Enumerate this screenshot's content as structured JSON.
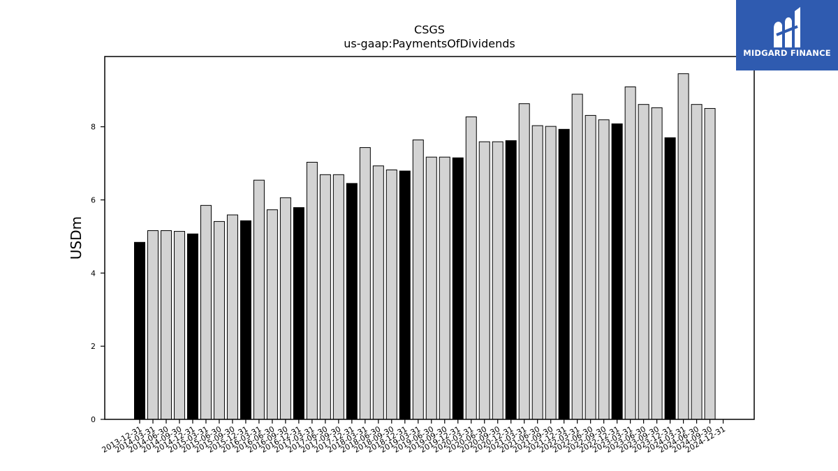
{
  "logo": {
    "text": "MIDGARD FINANCE",
    "icon": "midgard-finance-logo-icon",
    "background_color": "#2f5bb0"
  },
  "colors": {
    "year_end_bar": "#000000",
    "interim_bar": "#d3d3d3",
    "bar_edge": "#000000"
  },
  "chart_data": {
    "type": "bar",
    "title": "CSGS",
    "subtitle": "us-gaap:PaymentsOfDividends",
    "xlabel": "",
    "ylabel": "USDm",
    "ylim": [
      0,
      9.92
    ],
    "yticks": [
      0,
      2,
      4,
      6,
      8
    ],
    "grid": false,
    "legend": "none",
    "categories": [
      "2013-12-31",
      "2014-03-31",
      "2014-06-30",
      "2014-09-30",
      "2014-12-31",
      "2015-03-31",
      "2015-06-30",
      "2015-09-30",
      "2015-12-31",
      "2016-03-31",
      "2016-06-30",
      "2016-09-30",
      "2016-12-31",
      "2017-03-31",
      "2017-06-30",
      "2017-09-30",
      "2017-12-31",
      "2018-03-31",
      "2018-06-30",
      "2018-09-30",
      "2018-12-31",
      "2019-03-31",
      "2019-06-30",
      "2019-09-30",
      "2019-12-31",
      "2020-03-31",
      "2020-06-30",
      "2020-09-30",
      "2020-12-31",
      "2021-03-31",
      "2021-06-30",
      "2021-09-30",
      "2021-12-31",
      "2022-03-31",
      "2022-06-30",
      "2022-09-30",
      "2022-12-31",
      "2023-03-31",
      "2023-06-30",
      "2023-09-30",
      "2023-12-31",
      "2024-03-31",
      "2024-06-30",
      "2024-09-30",
      "2024-12-31"
    ],
    "values": [
      4.84,
      5.16,
      5.16,
      5.14,
      5.07,
      5.85,
      5.41,
      5.59,
      5.43,
      6.54,
      5.73,
      6.06,
      5.79,
      7.03,
      6.69,
      6.69,
      6.45,
      7.43,
      6.93,
      6.82,
      6.79,
      7.64,
      7.17,
      7.17,
      7.15,
      8.27,
      7.59,
      7.59,
      7.62,
      8.63,
      8.03,
      8.01,
      7.93,
      8.89,
      8.31,
      8.19,
      8.08,
      9.09,
      8.61,
      8.52,
      7.7,
      9.45,
      8.61,
      8.5,
      0.0
    ],
    "year_end_flags": [
      true,
      false,
      false,
      false,
      true,
      false,
      false,
      false,
      true,
      false,
      false,
      false,
      true,
      false,
      false,
      false,
      true,
      false,
      false,
      false,
      true,
      false,
      false,
      false,
      true,
      false,
      false,
      false,
      true,
      false,
      false,
      false,
      true,
      false,
      false,
      false,
      true,
      false,
      false,
      false,
      true,
      false,
      false,
      false,
      true
    ]
  }
}
